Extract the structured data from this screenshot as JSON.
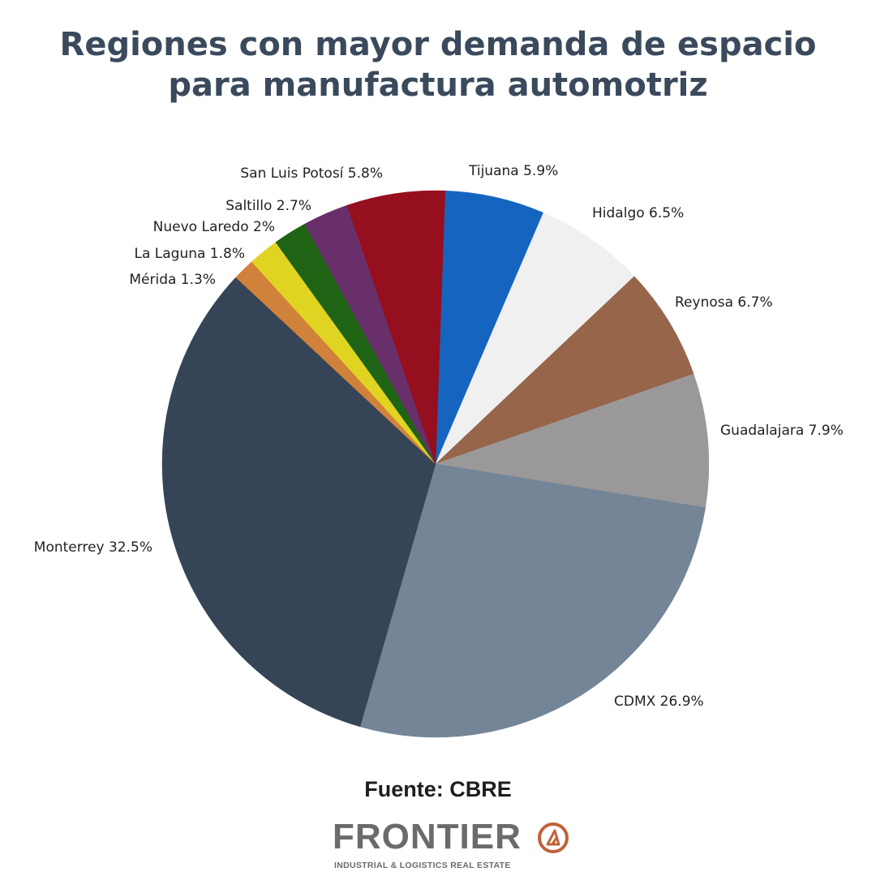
{
  "title": {
    "line1": "Regiones con mayor demanda de espacio",
    "line2": "para manufactura automotriz"
  },
  "chart_data": {
    "type": "pie",
    "start_angle_deg": 88,
    "direction": "clockwise",
    "slices": [
      {
        "label": "Tijuana 5.9%",
        "name": "Tijuana",
        "value": 5.9,
        "color": "#1565c0"
      },
      {
        "label": "Hidalgo 6.5%",
        "name": "Hidalgo",
        "value": 6.5,
        "color": "#f0f0f0"
      },
      {
        "label": "Reynosa 6.7%",
        "name": "Reynosa",
        "value": 6.7,
        "color": "#96654a"
      },
      {
        "label": "Guadalajara 7.9%",
        "name": "Guadalajara",
        "value": 7.9,
        "color": "#9b9899"
      },
      {
        "label": "CDMX 26.9%",
        "name": "CDMX",
        "value": 26.9,
        "color": "#738596"
      },
      {
        "label": "Monterrey 32.5%",
        "name": "Monterrey",
        "value": 32.5,
        "color": "#354457"
      },
      {
        "label": "Mérida 1.3%",
        "name": "Mérida",
        "value": 1.3,
        "color": "#d1823a"
      },
      {
        "label": "La Laguna 1.8%",
        "name": "La Laguna",
        "value": 1.8,
        "color": "#e0d422"
      },
      {
        "label": "Nuevo Laredo 2%",
        "name": "Nuevo Laredo",
        "value": 2.0,
        "color": "#1e6414"
      },
      {
        "label": "Saltillo 2.7%",
        "name": "Saltillo",
        "value": 2.7,
        "color": "#682f6b"
      },
      {
        "label": "San Luis Potosí 5.8%",
        "name": "San Luis Potosí",
        "value": 5.8,
        "color": "#960f1e"
      }
    ]
  },
  "source": "Fuente: CBRE",
  "logo": {
    "word": "FRONTIER",
    "tagline": "INDUSTRIAL & LOGISTICS REAL ESTATE",
    "accent_color": "#c0623a"
  }
}
